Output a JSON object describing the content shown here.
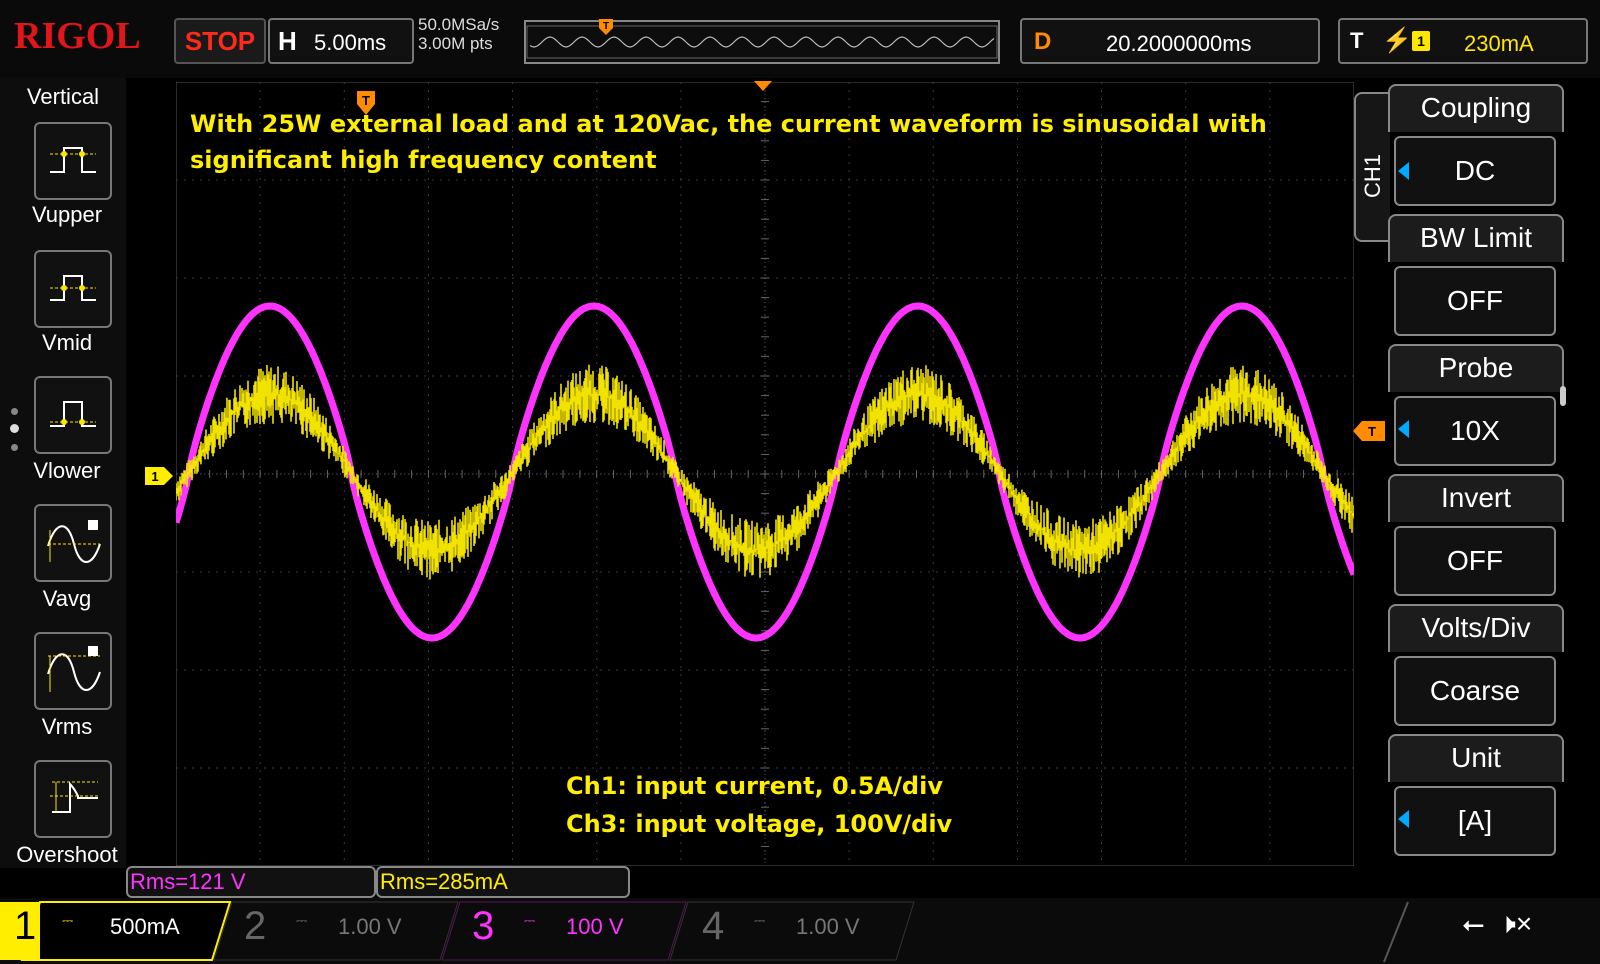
{
  "header": {
    "brand": "RIGOL",
    "run_state": "STOP",
    "horizontal_label": "H",
    "horizontal_value": "5.00ms",
    "sample_rate": "50.0MSa/s",
    "memory_depth": "3.00M pts",
    "delay_label": "D",
    "delay_value": "20.2000000ms",
    "trigger_label": "T",
    "trigger_channel": "1",
    "trigger_level": "230mA"
  },
  "left_panel": {
    "title": "Vertical",
    "items": [
      {
        "label": "Vupper",
        "icon": "vupper-icon"
      },
      {
        "label": "Vmid",
        "icon": "vmid-icon"
      },
      {
        "label": "Vlower",
        "icon": "vlower-icon"
      },
      {
        "label": "Vavg",
        "icon": "vavg-icon"
      },
      {
        "label": "Vrms",
        "icon": "vrms-icon"
      },
      {
        "label": "Overshoot",
        "icon": "overshoot-icon"
      }
    ]
  },
  "annotations": {
    "line1": "With 25W external load and at 120Vac, the current waveform is sinusoidal with",
    "line2": "significant high frequency content",
    "ch1_note": "Ch1: input current, 0.5A/div",
    "ch3_note": "Ch3: input voltage, 100V/div"
  },
  "markers": {
    "ch1_marker": "1",
    "trigger_marker": "T"
  },
  "right_panel": {
    "channel_tab": "CH1",
    "items": [
      {
        "title": "Coupling",
        "value": "DC"
      },
      {
        "title": "BW Limit",
        "value": "OFF"
      },
      {
        "title": "Probe",
        "value": "10X"
      },
      {
        "title": "Invert",
        "value": "OFF"
      },
      {
        "title": "Volts/Div",
        "value": "Coarse"
      },
      {
        "title": "Unit",
        "value": "[A]"
      }
    ]
  },
  "measurements": {
    "ch3_rms": "Rms=121 V",
    "ch1_rms": "Rms=285mA"
  },
  "channels": [
    {
      "num": "1",
      "coupling": "⎓",
      "scale": "500mA",
      "color": "#ffee00",
      "active": true
    },
    {
      "num": "2",
      "coupling": "⎓",
      "scale": "1.00 V",
      "color": "#777777",
      "active": false
    },
    {
      "num": "3",
      "coupling": "⎓",
      "scale": "100 V",
      "color": "#ff33ff",
      "active": true
    },
    {
      "num": "4",
      "coupling": "⎓",
      "scale": "1.00 V",
      "color": "#777777",
      "active": false
    }
  ],
  "colors": {
    "ch1": "#ffee00",
    "ch3": "#ff33ff",
    "brand": "#e0161a",
    "trigger": "#ff8c00",
    "grid": "#3a3a3a"
  },
  "status_icons": [
    "usb-icon",
    "speaker-mute-icon"
  ]
}
